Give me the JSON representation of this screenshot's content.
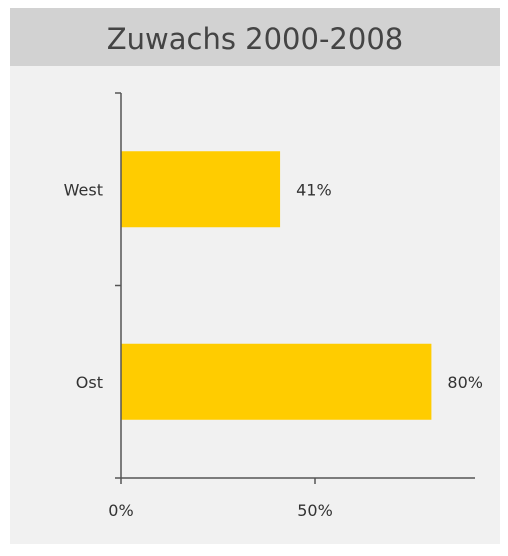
{
  "colors": {
    "title_band": "#d2d2d2",
    "plot_background": "#f1f1f1",
    "bar": "#ffcc00",
    "axis": "#555555",
    "text": "#333333"
  },
  "chart_data": {
    "type": "bar",
    "orientation": "horizontal",
    "title": "Zuwachs 2000-2008",
    "categories": [
      "West",
      "Ost"
    ],
    "values": [
      41,
      80
    ],
    "value_labels": [
      "41%",
      "80%"
    ],
    "xlim": [
      0,
      100
    ],
    "x_ticks": [
      {
        "value": 0,
        "label": "0%"
      },
      {
        "value": 50,
        "label": "50%"
      }
    ],
    "xlabel": "",
    "ylabel": "",
    "grid": false,
    "legend": "none"
  }
}
